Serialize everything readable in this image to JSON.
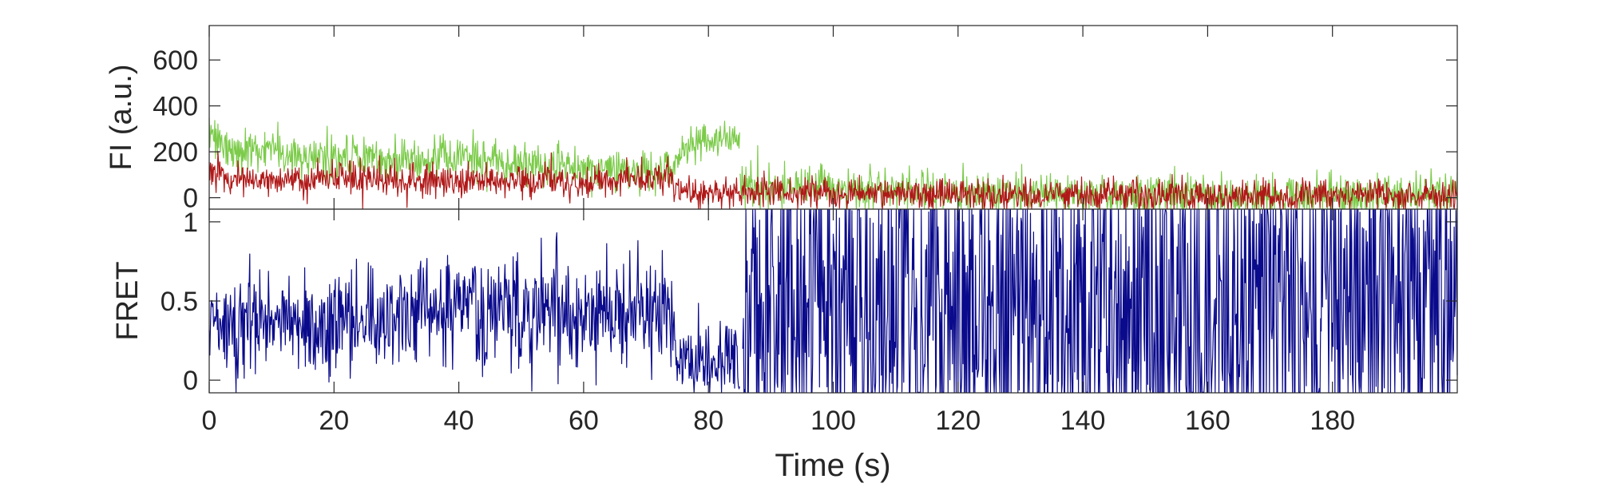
{
  "chart_data": [
    {
      "type": "line",
      "title": "",
      "xlabel": "",
      "ylabel": "FI (a.u.)",
      "xlim": [
        0,
        200
      ],
      "ylim": [
        -50,
        750
      ],
      "xticks": [
        0,
        20,
        40,
        60,
        80,
        100,
        120,
        140,
        160,
        180
      ],
      "yticks": [
        0,
        200,
        400,
        600
      ],
      "ytick_labels": [
        "0",
        "200",
        "400",
        "600"
      ],
      "grid": false,
      "series_colors": [
        "#7ccb4a",
        "#b01818"
      ],
      "series": [
        {
          "name": "",
          "color": "#7ccb4a",
          "segments": [
            {
              "x": [
                0,
                1,
                3,
                10,
                20,
                30,
                40,
                50,
                60,
                70,
                74,
                76,
                80,
                84,
                85
              ],
              "y": [
                330,
                240,
                200,
                200,
                175,
                165,
                165,
                145,
                125,
                110,
                120,
                200,
                260,
                250,
                240
              ]
            },
            {
              "x": [
                85,
                86,
                100,
                120,
                140,
                160,
                180,
                200
              ],
              "y": [
                60,
                45,
                40,
                25,
                10,
                5,
                10,
                10
              ]
            }
          ],
          "noise_sd": 45
        },
        {
          "name": "",
          "color": "#b01818",
          "segments": [
            {
              "x": [
                0,
                5,
                20,
                40,
                60,
                70,
                74,
                75,
                76,
                85,
                86,
                100,
                140,
                200
              ],
              "y": [
                110,
                80,
                80,
                70,
                75,
                75,
                80,
                40,
                20,
                20,
                25,
                20,
                10,
                10
              ]
            }
          ],
          "noise_sd": 35
        }
      ]
    },
    {
      "type": "line",
      "title": "",
      "xlabel": "Time (s)",
      "ylabel": "FRET",
      "xlim": [
        0,
        200
      ],
      "ylim": [
        -0.08,
        1.08
      ],
      "xticks": [
        0,
        20,
        40,
        60,
        80,
        100,
        120,
        140,
        160,
        180
      ],
      "xtick_labels": [
        "0",
        "20",
        "40",
        "60",
        "80",
        "100",
        "120",
        "140",
        "160",
        "180"
      ],
      "yticks": [
        0,
        0.5,
        1
      ],
      "ytick_labels": [
        "0",
        "0.5",
        "1"
      ],
      "grid": false,
      "series_colors": [
        "#0a0a8c"
      ],
      "series": [
        {
          "name": "",
          "color": "#0a0a8c",
          "segments": [
            {
              "x": [
                0,
                20,
                40,
                60,
                74,
                75,
                76,
                85
              ],
              "y": [
                0.35,
                0.35,
                0.45,
                0.45,
                0.4,
                0.15,
                0.1,
                0.1
              ]
            },
            {
              "x": [
                85.5,
                200
              ],
              "y": [
                0.5,
                0.5
              ]
            }
          ],
          "noise_sd": [
            0.17,
            0.17,
            0.17,
            0.17,
            0.17,
            0.12,
            0.12,
            0.12
          ],
          "high_noise_region": {
            "x_start": 85.5,
            "x_end": 200,
            "noise_sd": 0.7
          }
        }
      ]
    }
  ]
}
